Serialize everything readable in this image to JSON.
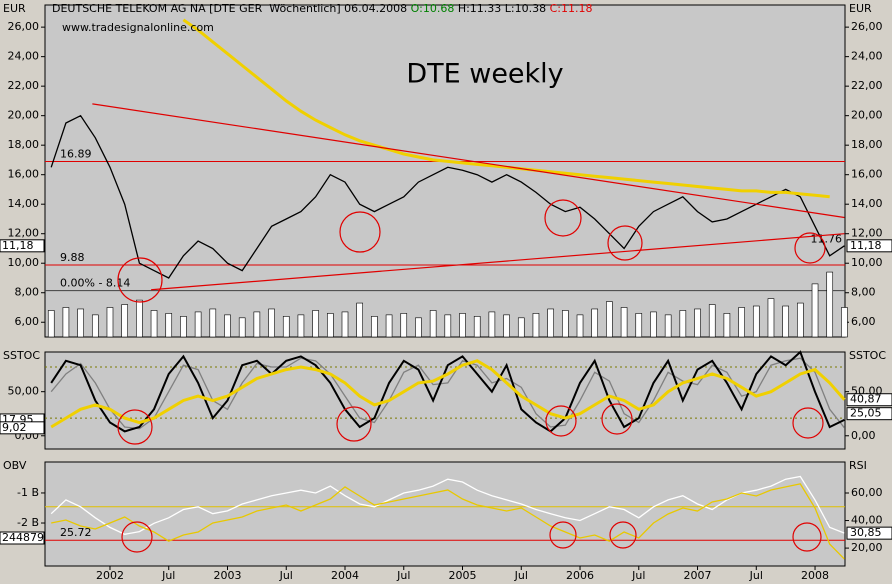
{
  "header": {
    "instrument": "DEUTSCHE TELEKOM AG NA [DTE GER  Wöchentlich] 06.04.2008",
    "open": "O:10.68",
    "high": "H:11.33",
    "low": "L:10.38",
    "close": "C:11.18"
  },
  "chart_data": [
    {
      "type": "line",
      "label": "EUR",
      "label_right": "EUR",
      "watermark": "www.tradesignalonline.com",
      "title": "DTE weekly",
      "ylim": [
        5,
        27.5
      ],
      "yticks": [
        {
          "value": 6,
          "label": "6,00"
        },
        {
          "value": 8,
          "label": "8,00"
        },
        {
          "value": 10,
          "label": "10,00"
        },
        {
          "value": 12,
          "label": "12,00"
        },
        {
          "value": 14,
          "label": "14,00"
        },
        {
          "value": 16,
          "label": "16,00"
        },
        {
          "value": 18,
          "label": "18,00"
        },
        {
          "value": 20,
          "label": "20,00"
        },
        {
          "value": 22,
          "label": "22,00"
        },
        {
          "value": 24,
          "label": "24,00"
        },
        {
          "value": 26,
          "label": "26,00"
        }
      ],
      "x": [
        2001.5,
        2001.625,
        2001.75,
        2001.875,
        2002,
        2002.125,
        2002.25,
        2002.375,
        2002.5,
        2002.625,
        2002.75,
        2002.875,
        2003,
        2003.125,
        2003.25,
        2003.375,
        2003.5,
        2003.625,
        2003.75,
        2003.875,
        2004,
        2004.125,
        2004.25,
        2004.375,
        2004.5,
        2004.625,
        2004.75,
        2004.875,
        2005,
        2005.125,
        2005.25,
        2005.375,
        2005.5,
        2005.625,
        2005.75,
        2005.875,
        2006,
        2006.125,
        2006.25,
        2006.375,
        2006.5,
        2006.625,
        2006.75,
        2006.875,
        2007,
        2007.125,
        2007.25,
        2007.375,
        2007.5,
        2007.625,
        2007.75,
        2007.875,
        2008,
        2008.125,
        2008.25
      ],
      "series": [
        {
          "type": "bar",
          "color": "#ffffff",
          "values": [
            6.8,
            7.0,
            6.9,
            6.5,
            7.0,
            7.2,
            7.5,
            6.8,
            6.6,
            6.4,
            6.7,
            6.9,
            6.5,
            6.3,
            6.7,
            6.9,
            6.4,
            6.5,
            6.8,
            6.6,
            6.7,
            7.3,
            6.4,
            6.5,
            6.6,
            6.3,
            6.8,
            6.5,
            6.6,
            6.4,
            6.7,
            6.5,
            6.3,
            6.6,
            6.9,
            6.8,
            6.5,
            6.9,
            7.4,
            7.0,
            6.6,
            6.7,
            6.5,
            6.8,
            6.9,
            7.2,
            6.6,
            7.0,
            7.1,
            7.6,
            7.1,
            7.3,
            8.6,
            9.4,
            7.0
          ]
        },
        {
          "type": "line",
          "color": "#000000",
          "values": [
            16.5,
            19.5,
            20.0,
            18.5,
            16.5,
            14.0,
            10.0,
            9.5,
            9.0,
            10.5,
            11.5,
            11.0,
            10.0,
            9.5,
            11.0,
            12.5,
            13.0,
            13.5,
            14.5,
            16.0,
            15.5,
            14.0,
            13.5,
            14.0,
            14.5,
            15.5,
            16.0,
            16.5,
            16.3,
            16.0,
            15.5,
            16.0,
            15.5,
            14.8,
            14.0,
            13.5,
            13.8,
            13.0,
            12.0,
            11.0,
            12.5,
            13.5,
            14.0,
            14.5,
            13.5,
            12.8,
            13.0,
            13.5,
            14.0,
            14.5,
            15.0,
            14.5,
            12.5,
            10.5,
            11.18
          ]
        },
        {
          "type": "line",
          "color": "#f0d000",
          "width": 3,
          "values": [
            null,
            null,
            null,
            null,
            null,
            null,
            null,
            null,
            null,
            26.5,
            25.8,
            25.0,
            24.2,
            23.4,
            22.6,
            21.8,
            21.0,
            20.3,
            19.7,
            19.2,
            18.7,
            18.3,
            18.0,
            17.7,
            17.4,
            17.2,
            17.0,
            16.9,
            16.8,
            16.7,
            16.6,
            16.5,
            16.4,
            16.3,
            16.2,
            16.1,
            16.0,
            15.9,
            15.8,
            15.7,
            15.6,
            15.5,
            15.4,
            15.3,
            15.2,
            15.1,
            15.0,
            14.9,
            14.9,
            14.8,
            14.8,
            14.7,
            14.6,
            14.5,
            null
          ]
        }
      ],
      "trendlines": [
        {
          "color": "#e00000",
          "x": [
            2001.85,
            2008.25
          ],
          "y": [
            20.8,
            13.1
          ]
        },
        {
          "color": "#e00000",
          "x": [
            2002.35,
            2008.25
          ],
          "y": [
            8.2,
            12.0
          ]
        }
      ],
      "levels": [
        {
          "value": 16.89,
          "label": "16.89",
          "color": "#e00000"
        },
        {
          "value": 9.88,
          "label": "9.88",
          "color": "#e00000"
        },
        {
          "value": 8.14,
          "label": "0.00% - 8.14",
          "color": "#404040"
        },
        {
          "value": 11.76,
          "label": "11.76",
          "color": "#e00000",
          "line": false,
          "label_at": "right"
        }
      ],
      "boxes": [
        {
          "value": 11.18,
          "label": "11,18",
          "side": "left"
        },
        {
          "value": 11.18,
          "label": "11,18",
          "side": "right"
        }
      ]
    },
    {
      "type": "line",
      "label": "SSTOC",
      "label_right": "SSTOC",
      "ylim": [
        -15,
        95
      ],
      "yticks": [
        {
          "value": 0,
          "label": "0,00"
        },
        {
          "value": 50,
          "label": "50,00"
        }
      ],
      "x": [
        2001.5,
        2001.625,
        2001.75,
        2001.875,
        2002,
        2002.125,
        2002.25,
        2002.375,
        2002.5,
        2002.625,
        2002.75,
        2002.875,
        2003,
        2003.125,
        2003.25,
        2003.375,
        2003.5,
        2003.625,
        2003.75,
        2003.875,
        2004,
        2004.125,
        2004.25,
        2004.375,
        2004.5,
        2004.625,
        2004.75,
        2004.875,
        2005,
        2005.125,
        2005.25,
        2005.375,
        2005.5,
        2005.625,
        2005.75,
        2005.875,
        2006,
        2006.125,
        2006.25,
        2006.375,
        2006.5,
        2006.625,
        2006.75,
        2006.875,
        2007,
        2007.125,
        2007.25,
        2007.375,
        2007.5,
        2007.625,
        2007.75,
        2007.875,
        2008,
        2008.125,
        2008.25
      ],
      "series": [
        {
          "type": "line",
          "color": "#808080",
          "values": [
            50,
            70,
            82,
            60,
            30,
            10,
            8,
            20,
            50,
            80,
            75,
            40,
            30,
            60,
            82,
            78,
            78,
            88,
            85,
            70,
            45,
            20,
            15,
            40,
            72,
            80,
            58,
            60,
            85,
            80,
            60,
            65,
            55,
            25,
            10,
            12,
            40,
            72,
            62,
            25,
            15,
            40,
            72,
            62,
            58,
            80,
            72,
            45,
            50,
            80,
            85,
            88,
            72,
            30,
            9.02
          ]
        },
        {
          "type": "line",
          "color": "#000000",
          "width": 2,
          "values": [
            60,
            85,
            80,
            40,
            15,
            5,
            10,
            30,
            70,
            90,
            60,
            20,
            40,
            80,
            85,
            70,
            85,
            90,
            80,
            60,
            30,
            10,
            20,
            60,
            85,
            75,
            40,
            80,
            90,
            70,
            50,
            80,
            30,
            15,
            5,
            20,
            60,
            85,
            40,
            10,
            20,
            60,
            85,
            40,
            75,
            85,
            60,
            30,
            70,
            90,
            80,
            95,
            50,
            10,
            17.95
          ]
        },
        {
          "type": "line",
          "color": "#f0d000",
          "width": 3,
          "values": [
            10,
            20,
            30,
            35,
            30,
            20,
            15,
            20,
            30,
            40,
            45,
            40,
            45,
            55,
            65,
            70,
            75,
            78,
            75,
            70,
            60,
            45,
            35,
            40,
            50,
            60,
            62,
            70,
            80,
            85,
            75,
            60,
            45,
            35,
            25,
            20,
            25,
            35,
            45,
            40,
            30,
            35,
            50,
            60,
            65,
            70,
            65,
            55,
            45,
            50,
            60,
            70,
            75,
            60,
            40.87
          ]
        }
      ],
      "levels": [
        {
          "value": 78,
          "color": "#7a7a00",
          "dash": true
        },
        {
          "value": 20,
          "color": "#7a7a00",
          "dash": true
        }
      ],
      "boxes": [
        {
          "value": 17.95,
          "label": "17,95",
          "side": "left"
        },
        {
          "value": 9.02,
          "label": "9,02",
          "side": "left"
        },
        {
          "value": 40.87,
          "label": "40,87",
          "side": "right"
        },
        {
          "value": 25.05,
          "label": "25,05",
          "side": "right"
        }
      ]
    },
    {
      "type": "line",
      "label": "OBV",
      "label_right": "RSI",
      "tag": "244879",
      "ylim": [
        -3.43,
        0.03
      ],
      "yticks": [
        {
          "value": -2,
          "label": "-2 B"
        },
        {
          "value": -1,
          "label": "-1 B"
        }
      ],
      "y2lim": [
        7,
        82.5
      ],
      "y2ticks": [
        {
          "value": 20,
          "label": "20,00"
        },
        {
          "value": 40,
          "label": "40,00"
        },
        {
          "value": 60,
          "label": "60,00"
        }
      ],
      "xlim": [
        2001.447,
        2008.255
      ],
      "xticks": [
        {
          "value": 2002,
          "label": "2002"
        },
        {
          "value": 2002.5,
          "label": "Jul"
        },
        {
          "value": 2003,
          "label": "2003"
        },
        {
          "value": 2003.5,
          "label": "Jul"
        },
        {
          "value": 2004,
          "label": "2004"
        },
        {
          "value": 2004.5,
          "label": "Jul"
        },
        {
          "value": 2005,
          "label": "2005"
        },
        {
          "value": 2005.5,
          "label": "Jul"
        },
        {
          "value": 2006,
          "label": "2006"
        },
        {
          "value": 2006.5,
          "label": "Jul"
        },
        {
          "value": 2007,
          "label": "2007"
        },
        {
          "value": 2007.5,
          "label": "Jul"
        },
        {
          "value": 2008,
          "label": "2008"
        }
      ],
      "x": [
        2001.5,
        2001.625,
        2001.75,
        2001.875,
        2002,
        2002.125,
        2002.25,
        2002.375,
        2002.5,
        2002.625,
        2002.75,
        2002.875,
        2003,
        2003.125,
        2003.25,
        2003.375,
        2003.5,
        2003.625,
        2003.75,
        2003.875,
        2004,
        2004.125,
        2004.25,
        2004.375,
        2004.5,
        2004.625,
        2004.75,
        2004.875,
        2005,
        2005.125,
        2005.25,
        2005.375,
        2005.5,
        2005.625,
        2005.75,
        2005.875,
        2006,
        2006.125,
        2006.25,
        2006.375,
        2006.5,
        2006.625,
        2006.75,
        2006.875,
        2007,
        2007.125,
        2007.25,
        2007.375,
        2007.5,
        2007.625,
        2007.75,
        2007.875,
        2008,
        2008.125,
        2008.25
      ],
      "series": [
        {
          "type": "line",
          "color": "#ffffff",
          "axis": "y2",
          "values": [
            45,
            55,
            50,
            42,
            35,
            30,
            32,
            38,
            42,
            48,
            50,
            45,
            47,
            52,
            55,
            58,
            60,
            62,
            60,
            65,
            58,
            52,
            50,
            55,
            60,
            62,
            65,
            70,
            68,
            62,
            58,
            55,
            52,
            48,
            45,
            42,
            40,
            45,
            50,
            48,
            42,
            50,
            55,
            58,
            52,
            48,
            55,
            60,
            62,
            65,
            70,
            72,
            55,
            35,
            30.85
          ]
        },
        {
          "type": "line",
          "color": "#e8c800",
          "values": [
            -2.0,
            -1.9,
            -2.1,
            -2.2,
            -2.0,
            -1.8,
            -2.1,
            -2.3,
            -2.6,
            -2.4,
            -2.3,
            -2.0,
            -1.9,
            -1.8,
            -1.6,
            -1.5,
            -1.4,
            -1.6,
            -1.4,
            -1.2,
            -0.8,
            -1.1,
            -1.4,
            -1.3,
            -1.2,
            -1.1,
            -1.0,
            -0.9,
            -1.2,
            -1.4,
            -1.5,
            -1.6,
            -1.5,
            -1.8,
            -2.1,
            -2.3,
            -2.5,
            -2.4,
            -2.6,
            -2.3,
            -2.5,
            -2.0,
            -1.7,
            -1.5,
            -1.6,
            -1.3,
            -1.2,
            -1.0,
            -1.1,
            -0.9,
            -0.8,
            -0.7,
            -1.5,
            -2.7,
            -3.2
          ]
        }
      ],
      "levels": [
        {
          "value": 50,
          "color": "#e0c000",
          "axis": "y2"
        },
        {
          "value": 25.72,
          "label": "25.72",
          "color": "#e00000",
          "axis": "y2"
        }
      ],
      "boxes": [
        {
          "value": 30.85,
          "label": "30,85",
          "side": "right",
          "axis": "y2"
        }
      ]
    }
  ]
}
